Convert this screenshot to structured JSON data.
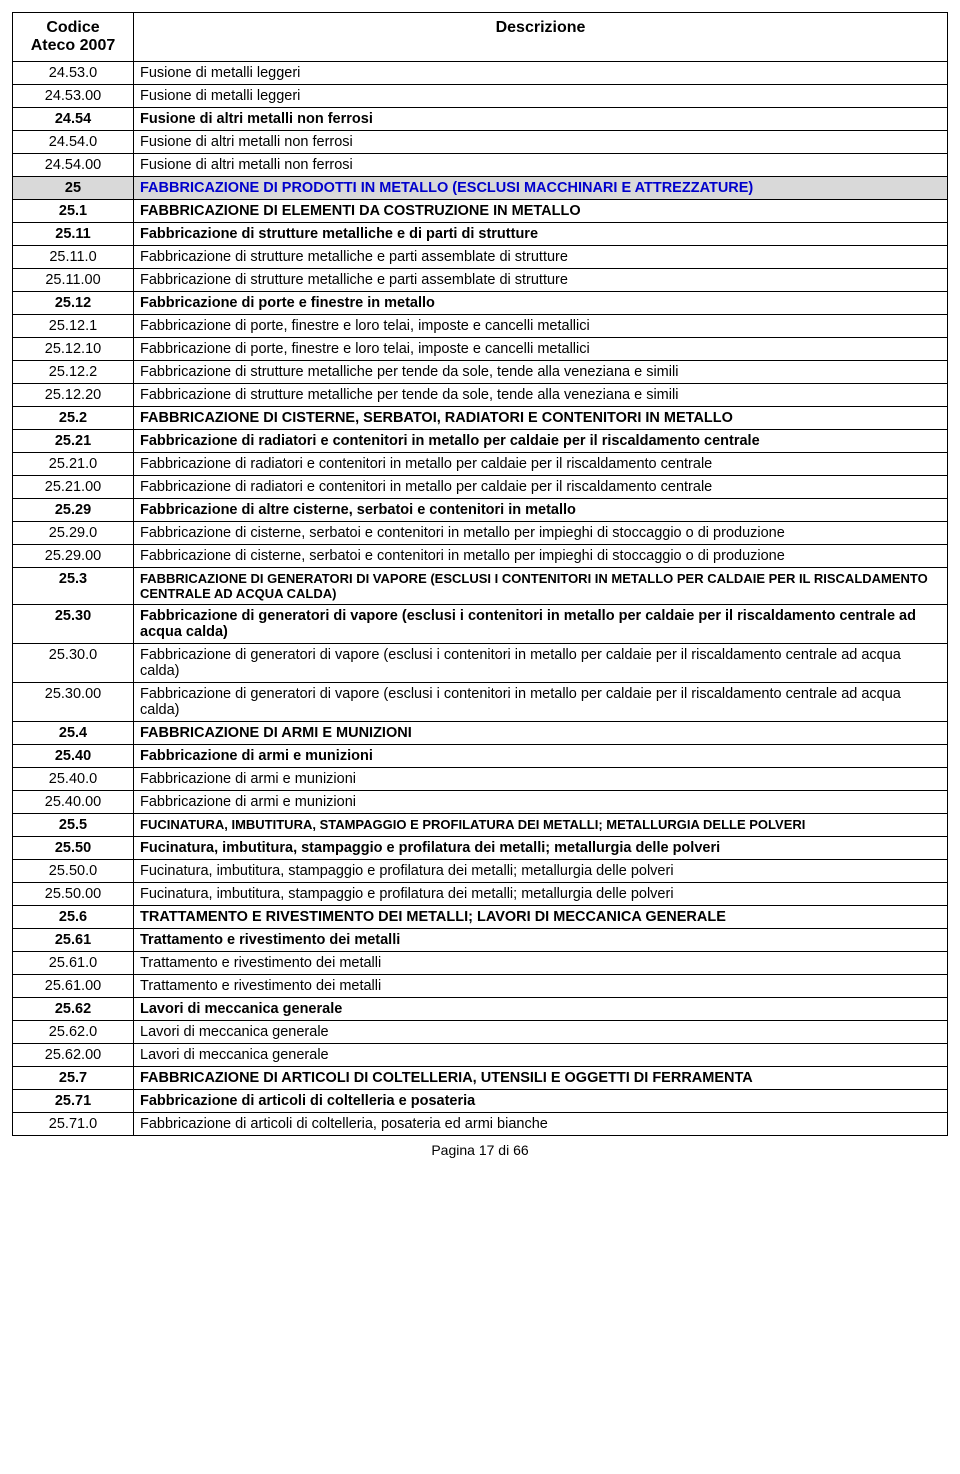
{
  "header": {
    "col1_line1": "Codice",
    "col1_line2": "Ateco 2007",
    "col2": "Descrizione"
  },
  "footer": "Pagina 17 di 66",
  "rows": [
    {
      "code": "24.53.0",
      "desc": "Fusione di metalli leggeri",
      "bold": false
    },
    {
      "code": "24.53.00",
      "desc": "Fusione di metalli leggeri",
      "bold": false
    },
    {
      "code": "24.54",
      "desc": "Fusione di altri metalli non ferrosi",
      "bold": true
    },
    {
      "code": "24.54.0",
      "desc": "Fusione di altri metalli non ferrosi",
      "bold": false
    },
    {
      "code": "24.54.00",
      "desc": "Fusione di altri metalli non ferrosi",
      "bold": false
    },
    {
      "code": "25",
      "desc": "FABBRICAZIONE DI PRODOTTI IN METALLO (ESCLUSI MACCHINARI E ATTREZZATURE)",
      "bold": true,
      "section": true
    },
    {
      "code": "25.1",
      "desc": "FABBRICAZIONE DI ELEMENTI DA COSTRUZIONE IN METALLO",
      "bold": true
    },
    {
      "code": "25.11",
      "desc": "Fabbricazione di strutture metalliche e di parti di strutture",
      "bold": true
    },
    {
      "code": "25.11.0",
      "desc": "Fabbricazione di strutture metalliche e parti assemblate di strutture",
      "bold": false
    },
    {
      "code": "25.11.00",
      "desc": "Fabbricazione di strutture metalliche e parti assemblate di strutture",
      "bold": false
    },
    {
      "code": "25.12",
      "desc": "Fabbricazione di porte e finestre in metallo",
      "bold": true
    },
    {
      "code": "25.12.1",
      "desc": "Fabbricazione di porte, finestre e loro telai, imposte e cancelli metallici",
      "bold": false
    },
    {
      "code": "25.12.10",
      "desc": "Fabbricazione di porte, finestre e loro telai, imposte e cancelli metallici",
      "bold": false
    },
    {
      "code": "25.12.2",
      "desc": "Fabbricazione di strutture metalliche per tende da sole, tende alla veneziana e simili",
      "bold": false
    },
    {
      "code": "25.12.20",
      "desc": "Fabbricazione di strutture metalliche per tende da sole, tende alla veneziana e simili",
      "bold": false
    },
    {
      "code": "25.2",
      "desc": "FABBRICAZIONE DI CISTERNE, SERBATOI, RADIATORI E CONTENITORI IN METALLO",
      "bold": true
    },
    {
      "code": "25.21",
      "desc": "Fabbricazione di radiatori e contenitori in metallo per caldaie per il riscaldamento centrale",
      "bold": true
    },
    {
      "code": "25.21.0",
      "desc": "Fabbricazione di radiatori e contenitori in metallo per caldaie per il riscaldamento centrale",
      "bold": false
    },
    {
      "code": "25.21.00",
      "desc": "Fabbricazione di radiatori e contenitori in metallo per caldaie per il riscaldamento centrale",
      "bold": false
    },
    {
      "code": "25.29",
      "desc": "Fabbricazione di altre cisterne, serbatoi e contenitori in metallo",
      "bold": true
    },
    {
      "code": "25.29.0",
      "desc": "Fabbricazione di cisterne, serbatoi e contenitori in metallo per impieghi di stoccaggio o di produzione",
      "bold": false
    },
    {
      "code": "25.29.00",
      "desc": "Fabbricazione di cisterne, serbatoi e contenitori in metallo per impieghi di stoccaggio o di produzione",
      "bold": false
    },
    {
      "code": "25.3",
      "desc": "FABBRICAZIONE DI GENERATORI DI VAPORE (ESCLUSI I CONTENITORI IN METALLO PER CALDAIE PER IL RISCALDAMENTO CENTRALE AD ACQUA CALDA)",
      "bold": true,
      "small": true
    },
    {
      "code": "25.30",
      "desc": "Fabbricazione di generatori di vapore (esclusi i contenitori in metallo per caldaie per il riscaldamento centrale ad acqua calda)",
      "bold": true
    },
    {
      "code": "25.30.0",
      "desc": "Fabbricazione di generatori di vapore (esclusi i contenitori in metallo per caldaie per il riscaldamento centrale ad acqua calda)",
      "bold": false
    },
    {
      "code": "25.30.00",
      "desc": "Fabbricazione di generatori di vapore (esclusi i contenitori in metallo per caldaie per il riscaldamento centrale ad acqua calda)",
      "bold": false
    },
    {
      "code": "25.4",
      "desc": "FABBRICAZIONE DI ARMI E MUNIZIONI",
      "bold": true
    },
    {
      "code": "25.40",
      "desc": "Fabbricazione di armi e munizioni",
      "bold": true
    },
    {
      "code": "25.40.0",
      "desc": "Fabbricazione di armi e munizioni",
      "bold": false
    },
    {
      "code": "25.40.00",
      "desc": "Fabbricazione di armi e munizioni",
      "bold": false
    },
    {
      "code": "25.5",
      "desc": "FUCINATURA, IMBUTITURA, STAMPAGGIO E PROFILATURA DEI METALLI; METALLURGIA DELLE POLVERI",
      "bold": true,
      "small": true
    },
    {
      "code": "25.50",
      "desc": "Fucinatura, imbutitura, stampaggio e profilatura dei metalli; metallurgia delle polveri",
      "bold": true
    },
    {
      "code": "25.50.0",
      "desc": "Fucinatura, imbutitura, stampaggio e profilatura dei metalli; metallurgia delle polveri",
      "bold": false
    },
    {
      "code": "25.50.00",
      "desc": "Fucinatura, imbutitura, stampaggio e profilatura dei metalli; metallurgia delle polveri",
      "bold": false
    },
    {
      "code": "25.6",
      "desc": "TRATTAMENTO E RIVESTIMENTO DEI METALLI; LAVORI DI MECCANICA GENERALE",
      "bold": true
    },
    {
      "code": "25.61",
      "desc": "Trattamento e rivestimento dei metalli",
      "bold": true
    },
    {
      "code": "25.61.0",
      "desc": "Trattamento e rivestimento dei metalli",
      "bold": false
    },
    {
      "code": "25.61.00",
      "desc": "Trattamento e rivestimento dei metalli",
      "bold": false
    },
    {
      "code": "25.62",
      "desc": "Lavori di meccanica generale",
      "bold": true
    },
    {
      "code": "25.62.0",
      "desc": "Lavori di meccanica generale",
      "bold": false
    },
    {
      "code": "25.62.00",
      "desc": "Lavori di meccanica generale",
      "bold": false
    },
    {
      "code": "25.7",
      "desc": "FABBRICAZIONE DI ARTICOLI DI COLTELLERIA, UTENSILI E OGGETTI DI FERRAMENTA",
      "bold": true
    },
    {
      "code": "25.71",
      "desc": "Fabbricazione di articoli di coltelleria e posateria",
      "bold": true
    },
    {
      "code": "25.71.0",
      "desc": "Fabbricazione di articoli di coltelleria, posateria ed armi bianche",
      "bold": false
    }
  ]
}
